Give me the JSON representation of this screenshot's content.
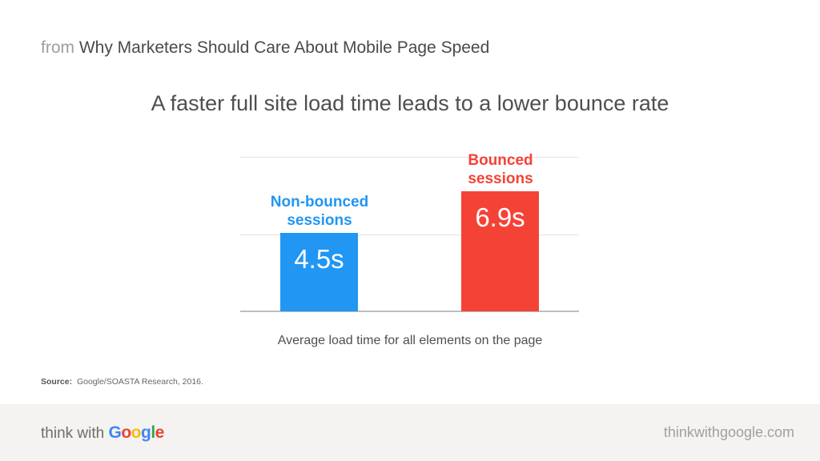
{
  "header": {
    "from_label": "from",
    "article_title": "Why Marketers Should Care About Mobile Page Speed"
  },
  "colors": {
    "non_bounced": "#2196f3",
    "bounced": "#f44336",
    "google_blue": "#4285f4",
    "google_red": "#ea4335",
    "google_yellow": "#fbbc05",
    "google_green": "#34a853"
  },
  "chart_data": {
    "type": "bar",
    "title": "A faster full site load time leads to a lower bounce rate",
    "categories": [
      "Non-bounced sessions",
      "Bounced sessions"
    ],
    "values": [
      4.5,
      6.9
    ],
    "value_labels": [
      "4.5s",
      "6.9s"
    ],
    "units": "seconds",
    "xlabel": "Average load time for all elements on the page",
    "ylabel": "",
    "ylim": [
      0,
      8.9
    ],
    "grid": true,
    "legend": "none (labels above bars)",
    "series_colors": [
      "#2196f3",
      "#f44336"
    ],
    "labels": {
      "non_bounced_line1": "Non-bounced",
      "non_bounced_line2": "sessions",
      "bounced_line1": "Bounced",
      "bounced_line2": "sessions"
    }
  },
  "source": {
    "label": "Source:",
    "text": "Google/SOASTA Research, 2016."
  },
  "footer": {
    "brand_prefix": "think with",
    "brand_letters": [
      "G",
      "o",
      "o",
      "g",
      "l",
      "e"
    ],
    "site": "thinkwithgoogle.com"
  }
}
